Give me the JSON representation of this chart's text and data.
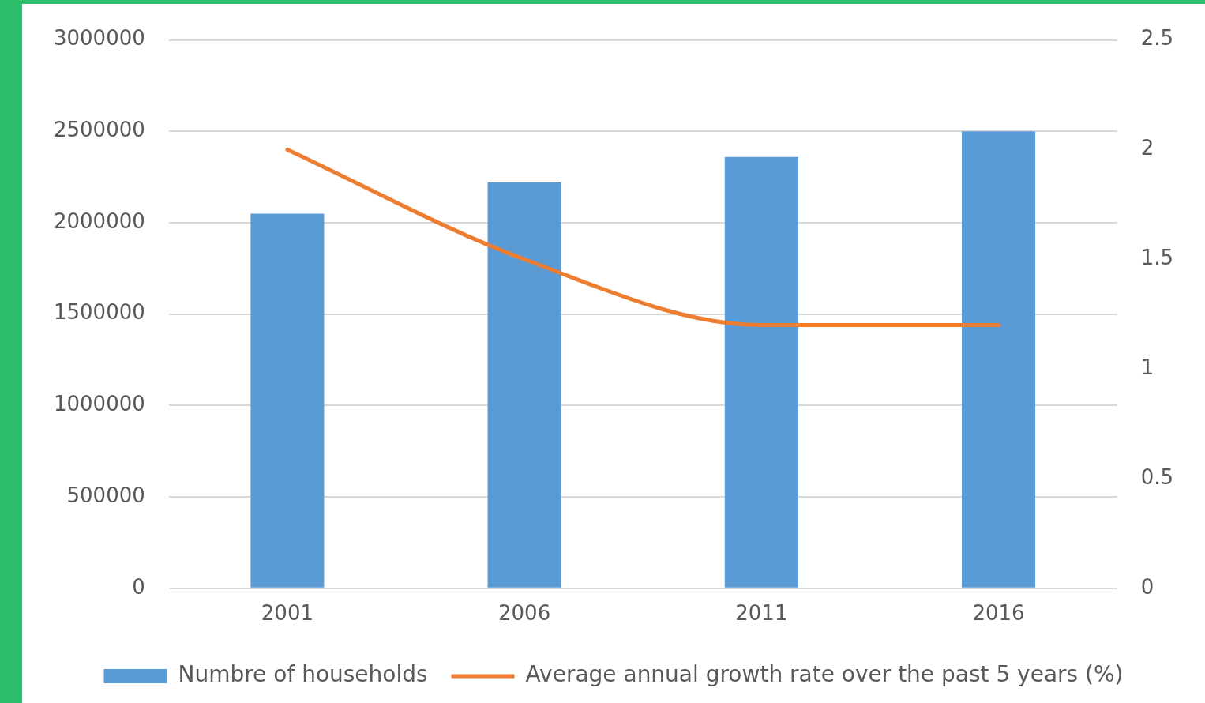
{
  "chart_data": {
    "type": "bar",
    "categories": [
      "2001",
      "2006",
      "2011",
      "2016"
    ],
    "series": [
      {
        "name": "Numbre of households",
        "color": "#5b9bd5",
        "values": [
          2050000,
          2220000,
          2360000,
          2500000
        ]
      },
      {
        "name": "Average annual growth rate over the past 5 years (%)",
        "type": "line",
        "axis": "y2",
        "color": "#ed7d31",
        "values": [
          2.0,
          1.5,
          1.2,
          1.2
        ]
      }
    ],
    "ylim": [
      0,
      3000000
    ],
    "yticks": [
      0,
      500000,
      1000000,
      1500000,
      2000000,
      2500000,
      3000000
    ],
    "y2lim": [
      0,
      2.5
    ],
    "y2ticks": [
      0,
      0.5,
      1,
      1.5,
      2,
      2.5
    ],
    "grid": "y",
    "legend": "bottom",
    "marker": "none",
    "line_style": "solid"
  }
}
